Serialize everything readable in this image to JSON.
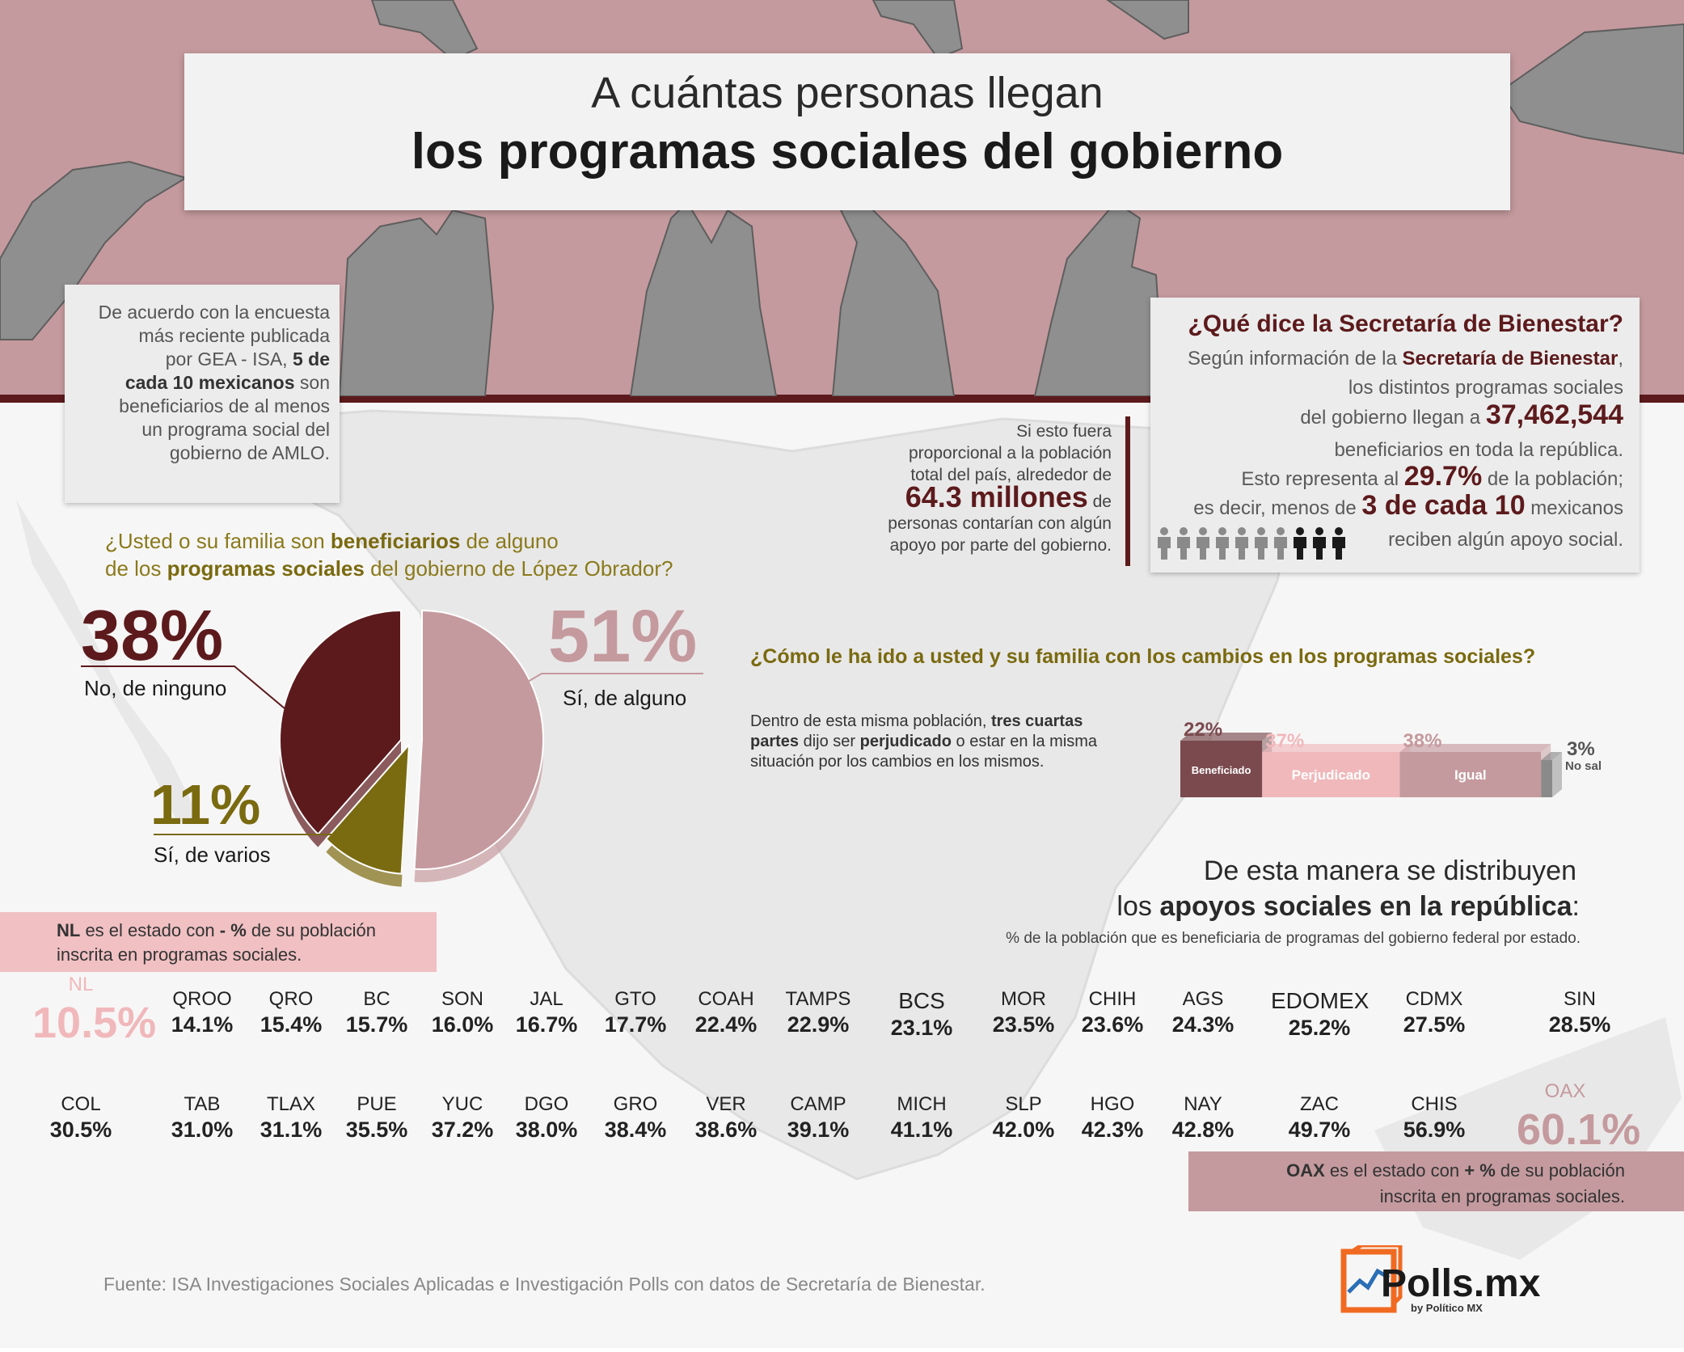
{
  "header": {
    "title_line1": "A cuántas personas llegan",
    "title_line2": "los programas sociales del gobierno"
  },
  "intro": {
    "l1": "De acuerdo con la encuesta",
    "l2": "más reciente publicada",
    "l3a": "por GEA - ISA, ",
    "l3b": "5 de",
    "l4a": "cada 10 mexicanos",
    "l4b": " son",
    "l5": "beneficiarios de al menos",
    "l6": "un programa social del",
    "l7": "gobierno de AMLO."
  },
  "secretaria": {
    "title": "¿Qué dice la Secretaría de Bienestar?",
    "l1a": "Según información de la ",
    "l1b": "Secretaría de Bienestar",
    "l1c": ",",
    "l2": "los distintos programas sociales",
    "l3a": "del gobierno llegan a ",
    "l3b": "37,462,544",
    "l4": "beneficiarios en toda la república.",
    "l5a": "Esto representa al ",
    "l5b": "29.7%",
    "l5c": " de la población;",
    "l6a": "es decir, menos de ",
    "l6b": "3 de cada 10",
    "l6c": " mexicanos",
    "l7": "reciben algún apoyo social.",
    "people_total": 10,
    "people_highlighted": 3,
    "colors": {
      "gray": "#8a8a8a",
      "dark": "#1a1a1a"
    }
  },
  "proportion": {
    "l1": "Si esto fuera",
    "l2": "proporcional a la población",
    "l3": "total del país, alrededor de",
    "big": "64.3 millones",
    "l4b": " de",
    "l5": "personas contarían con algún",
    "l6": "apoyo por parte del gobierno."
  },
  "question1": {
    "l1a": "¿Usted o su familia son ",
    "l1b": "beneficiarios",
    "l1c": " de alguno",
    "l2a": "de los ",
    "l2b": "programas sociales",
    "l2c": " del gobierno de López Obrador?"
  },
  "question2": {
    "title": "¿Cómo le ha ido a usted y su familia con los cambios en los programas sociales?",
    "d1": "Dentro de esta misma población, ",
    "d2": "tres cuartas",
    "d3": "partes",
    "d4": " dijo ser ",
    "d5": "perjudicado",
    "d6": " o estar en la misma",
    "d7": "situación por los cambios en los mismos."
  },
  "distribution": {
    "h1": "De esta manera se distribuyen",
    "h2a": "los ",
    "h2b": "apoyos sociales en la república",
    "h2c": ":",
    "sub": "% de la población que es beneficiaria de programas del gobierno federal por estado.",
    "nl_a": "NL",
    "nl_b": " es el estado con ",
    "nl_c": "- %",
    "nl_d": " de su población",
    "nl_e": "inscrita en programas sociales.",
    "oax_a": "OAX",
    "oax_b": " es el estado con ",
    "oax_c": "+ %",
    "oax_d": " de su población",
    "oax_e": "inscrita en programas sociales."
  },
  "chart_data": [
    {
      "type": "pie",
      "labels": [
        "No, de ninguno",
        "Sí, de alguno",
        "Sí, de varios"
      ],
      "values": [
        38,
        51,
        11
      ],
      "value_labels": [
        "38%",
        "51%",
        "11%"
      ],
      "colors": [
        "#5c1a1c",
        "#c49a9e",
        "#7a6a10"
      ]
    },
    {
      "type": "bar",
      "categories": [
        "Beneficiado",
        "Perjudicado",
        "Igual",
        "No sabe"
      ],
      "values": [
        22,
        37,
        38,
        3
      ],
      "value_labels": [
        "22%",
        "37%",
        "38%",
        "3%"
      ],
      "colors": [
        "#7a4a4e",
        "#f0b8bb",
        "#c49a9e",
        "#8a8a8a"
      ]
    },
    {
      "type": "table",
      "rows": [
        [
          {
            "state": "NL",
            "value": "10.5%"
          },
          {
            "state": "QROO",
            "value": "14.1%"
          },
          {
            "state": "QRO",
            "value": "15.4%"
          },
          {
            "state": "BC",
            "value": "15.7%"
          },
          {
            "state": "SON",
            "value": "16.0%"
          },
          {
            "state": "JAL",
            "value": "16.7%"
          },
          {
            "state": "GTO",
            "value": "17.7%"
          },
          {
            "state": "COAH",
            "value": "22.4%"
          },
          {
            "state": "TAMPS",
            "value": "22.9%"
          },
          {
            "state": "BCS",
            "value": "23.1%"
          },
          {
            "state": "MOR",
            "value": "23.5%"
          },
          {
            "state": "CHIH",
            "value": "23.6%"
          },
          {
            "state": "AGS",
            "value": "24.3%"
          },
          {
            "state": "EDOMEX",
            "value": "25.2%"
          },
          {
            "state": "CDMX",
            "value": "27.5%"
          },
          {
            "state": "SIN",
            "value": "28.5%"
          }
        ],
        [
          {
            "state": "COL",
            "value": "30.5%"
          },
          {
            "state": "TAB",
            "value": "31.0%"
          },
          {
            "state": "TLAX",
            "value": "31.1%"
          },
          {
            "state": "PUE",
            "value": "35.5%"
          },
          {
            "state": "YUC",
            "value": "37.2%"
          },
          {
            "state": "DGO",
            "value": "38.0%"
          },
          {
            "state": "GRO",
            "value": "38.4%"
          },
          {
            "state": "VER",
            "value": "38.6%"
          },
          {
            "state": "CAMP",
            "value": "39.1%"
          },
          {
            "state": "MICH",
            "value": "41.1%"
          },
          {
            "state": "SLP",
            "value": "42.0%"
          },
          {
            "state": "HGO",
            "value": "42.3%"
          },
          {
            "state": "NAY",
            "value": "42.8%"
          },
          {
            "state": "ZAC",
            "value": "49.7%"
          },
          {
            "state": "CHIS",
            "value": "56.9%"
          },
          {
            "state": "OAX",
            "value": "60.1%"
          }
        ]
      ]
    }
  ],
  "footer": {
    "source": "Fuente: ISA Investigaciones Sociales Aplicadas e  Investigación Polls con datos de Secretaría de Bienestar."
  },
  "logo": {
    "name": "Polls.mx",
    "sub": "by Político MX",
    "colors": {
      "orange": "#f06a22",
      "blue": "#2a6fb5"
    }
  }
}
